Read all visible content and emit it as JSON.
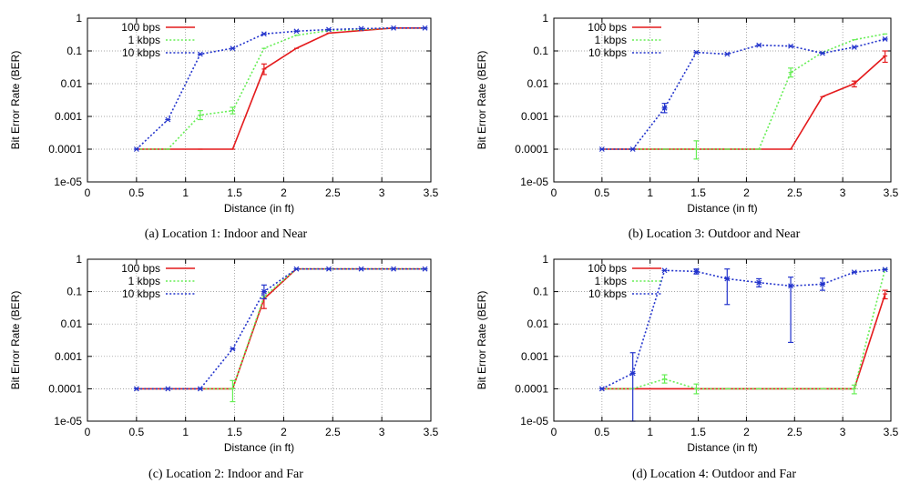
{
  "shared": {
    "xlabel": "Distance (in ft)",
    "ylabel": "Bit Error Rate (BER)",
    "x_ticks": [
      "0",
      "0.5",
      "1",
      "1.5",
      "2",
      "2.5",
      "3",
      "3.5"
    ],
    "y_ticks": [
      "1e-05",
      "0.0001",
      "0.001",
      "0.01",
      "0.1",
      "1"
    ]
  },
  "series_styles": [
    {
      "name": "100 bps",
      "color": "#e41a1c",
      "dash": "solid"
    },
    {
      "name": "1 kbps",
      "color": "#66ee55",
      "dash": "dotted"
    },
    {
      "name": "10 kbps",
      "color": "#2233cc",
      "dash": "dotted"
    }
  ],
  "chart_data": [
    {
      "type": "line",
      "caption": "(a) Location 1: Indoor and Near",
      "xlabel": "Distance (in ft)",
      "ylabel": "Bit Error Rate (BER)",
      "xlim": [
        0,
        3.5
      ],
      "ylim": [
        1e-05,
        1
      ],
      "yscale": "log",
      "legend": "top-left",
      "x": [
        0.5,
        0.82,
        1.15,
        1.48,
        1.8,
        2.13,
        2.46,
        2.79,
        3.12,
        3.44
      ],
      "series": [
        {
          "name": "100 bps",
          "values": [
            0.0001,
            0.0001,
            0.0001,
            0.0001,
            0.028,
            0.12,
            0.35,
            0.42,
            0.5,
            0.5
          ],
          "errors": [
            [
              1.8,
              0.019,
              0.04
            ]
          ]
        },
        {
          "name": "1 kbps",
          "values": [
            0.0001,
            0.0001,
            0.0011,
            0.0015,
            0.12,
            0.3,
            0.42,
            0.45,
            0.5,
            0.5
          ],
          "errors": [
            [
              1.15,
              0.0008,
              0.0015
            ],
            [
              1.48,
              0.0012,
              0.0019
            ]
          ]
        },
        {
          "name": "10 kbps",
          "values": [
            0.0001,
            0.0008,
            0.08,
            0.12,
            0.33,
            0.4,
            0.45,
            0.48,
            0.5,
            0.5
          ],
          "errors": []
        }
      ]
    },
    {
      "type": "line",
      "caption": "(b) Location 3: Outdoor and Near",
      "xlabel": "Distance (in ft)",
      "ylabel": "Bit Error Rate (BER)",
      "xlim": [
        0,
        3.5
      ],
      "ylim": [
        1e-05,
        1
      ],
      "yscale": "log",
      "legend": "top-left",
      "x": [
        0.5,
        0.82,
        1.15,
        1.48,
        1.8,
        2.13,
        2.46,
        2.79,
        3.12,
        3.44
      ],
      "series": [
        {
          "name": "100 bps",
          "values": [
            0.0001,
            0.0001,
            0.0001,
            0.0001,
            0.0001,
            0.0001,
            0.0001,
            0.004,
            0.01,
            0.07
          ],
          "errors": [
            [
              3.12,
              0.008,
              0.012
            ],
            [
              3.44,
              0.045,
              0.1
            ]
          ]
        },
        {
          "name": "1 kbps",
          "values": [
            0.0001,
            0.0001,
            0.0001,
            0.0001,
            0.0001,
            0.0001,
            0.022,
            0.09,
            0.22,
            0.33
          ],
          "errors": [
            [
              1.48,
              5e-05,
              0.00018
            ],
            [
              2.46,
              0.016,
              0.03
            ]
          ]
        },
        {
          "name": "10 kbps",
          "values": [
            0.0001,
            0.0001,
            0.0018,
            0.09,
            0.08,
            0.15,
            0.14,
            0.085,
            0.13,
            0.23
          ],
          "errors": [
            [
              1.15,
              0.0013,
              0.0025
            ]
          ]
        }
      ]
    },
    {
      "type": "line",
      "caption": "(c) Location 2: Indoor and Far",
      "xlabel": "Distance (in ft)",
      "ylabel": "Bit Error Rate (BER)",
      "xlim": [
        0,
        3.5
      ],
      "ylim": [
        1e-05,
        1
      ],
      "yscale": "log",
      "legend": "top-left",
      "x": [
        0.5,
        0.82,
        1.15,
        1.48,
        1.8,
        2.13,
        2.46,
        2.79,
        3.12,
        3.44
      ],
      "series": [
        {
          "name": "100 bps",
          "values": [
            0.0001,
            0.0001,
            0.0001,
            0.0001,
            0.06,
            0.5,
            0.5,
            0.5,
            0.5,
            0.5
          ],
          "errors": [
            [
              1.8,
              0.03,
              0.1
            ]
          ]
        },
        {
          "name": "1 kbps",
          "values": [
            0.0001,
            0.0001,
            0.0001,
            0.0001,
            0.07,
            0.5,
            0.5,
            0.5,
            0.5,
            0.5
          ],
          "errors": [
            [
              1.48,
              4e-05,
              0.00018
            ]
          ]
        },
        {
          "name": "10 kbps",
          "values": [
            0.0001,
            0.0001,
            0.0001,
            0.0017,
            0.1,
            0.5,
            0.5,
            0.5,
            0.5,
            0.5
          ],
          "errors": [
            [
              1.8,
              0.06,
              0.16
            ]
          ]
        }
      ]
    },
    {
      "type": "line",
      "caption": "(d) Location 4: Outdoor and Far",
      "xlabel": "Distance (in ft)",
      "ylabel": "Bit Error Rate (BER)",
      "xlim": [
        0,
        3.5
      ],
      "ylim": [
        1e-05,
        1
      ],
      "yscale": "log",
      "legend": "top-left",
      "x": [
        0.5,
        0.82,
        1.15,
        1.48,
        1.8,
        2.13,
        2.46,
        2.79,
        3.12,
        3.44
      ],
      "series": [
        {
          "name": "100 bps",
          "values": [
            0.0001,
            0.0001,
            0.0001,
            0.0001,
            0.0001,
            0.0001,
            0.0001,
            0.0001,
            0.0001,
            0.085
          ],
          "errors": [
            [
              3.44,
              0.06,
              0.11
            ]
          ]
        },
        {
          "name": "1 kbps",
          "values": [
            0.0001,
            0.0001,
            0.0002,
            0.0001,
            0.0001,
            0.0001,
            0.0001,
            0.0001,
            0.0001,
            0.5
          ],
          "errors": [
            [
              1.15,
              0.00015,
              0.00027
            ],
            [
              1.48,
              7e-05,
              0.00014
            ],
            [
              3.12,
              7e-05,
              0.00013
            ]
          ]
        },
        {
          "name": "10 kbps",
          "values": [
            0.0001,
            0.0003,
            0.45,
            0.42,
            0.25,
            0.19,
            0.15,
            0.17,
            0.4,
            0.48
          ],
          "errors": [
            [
              0.82,
              1e-05,
              0.0013
            ],
            [
              1.48,
              0.35,
              0.5
            ],
            [
              1.8,
              0.04,
              0.5
            ],
            [
              2.13,
              0.14,
              0.25
            ],
            [
              2.46,
              0.0027,
              0.28
            ],
            [
              2.79,
              0.11,
              0.26
            ]
          ]
        }
      ]
    }
  ]
}
